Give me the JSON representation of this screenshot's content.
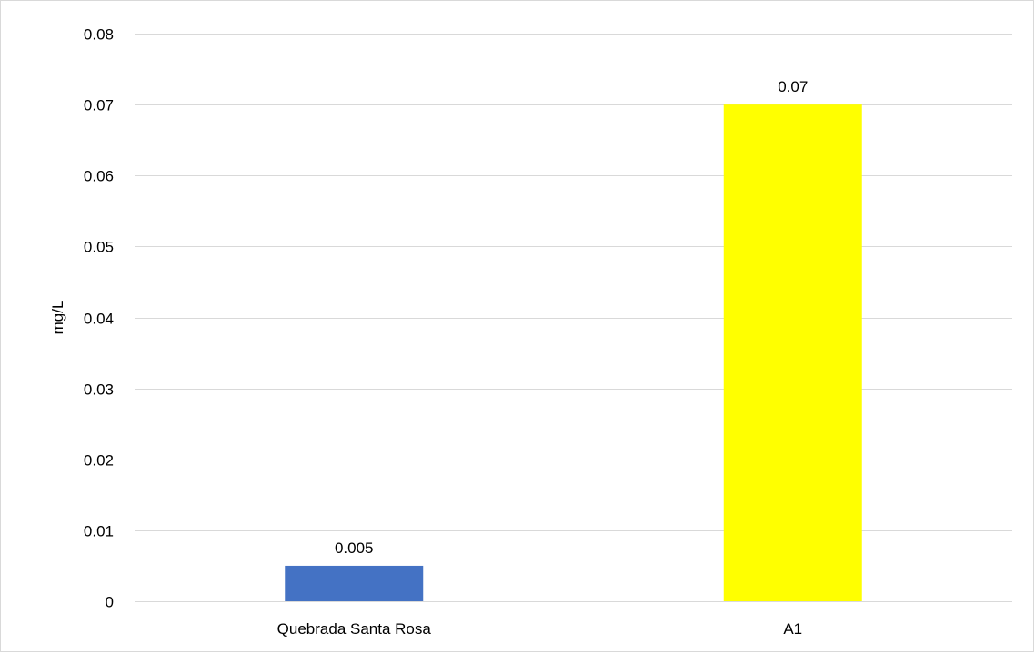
{
  "chart_data": {
    "type": "bar",
    "categories": [
      "Quebrada Santa Rosa",
      "A1"
    ],
    "values": [
      0.005,
      0.07
    ],
    "data_labels": [
      "0.005",
      "0.07"
    ],
    "bar_colors": [
      "#4472c4",
      "#ffff00"
    ],
    "title": "",
    "xlabel": "",
    "ylabel": "mg/L",
    "ylim": [
      0,
      0.08
    ],
    "yticks": [
      0,
      0.01,
      0.02,
      0.03,
      0.04,
      0.05,
      0.06,
      0.07,
      0.08
    ],
    "ytick_labels": [
      "0",
      "0.01",
      "0.02",
      "0.03",
      "0.04",
      "0.05",
      "0.06",
      "0.07",
      "0.08"
    ],
    "grid": true,
    "legend": "none"
  }
}
